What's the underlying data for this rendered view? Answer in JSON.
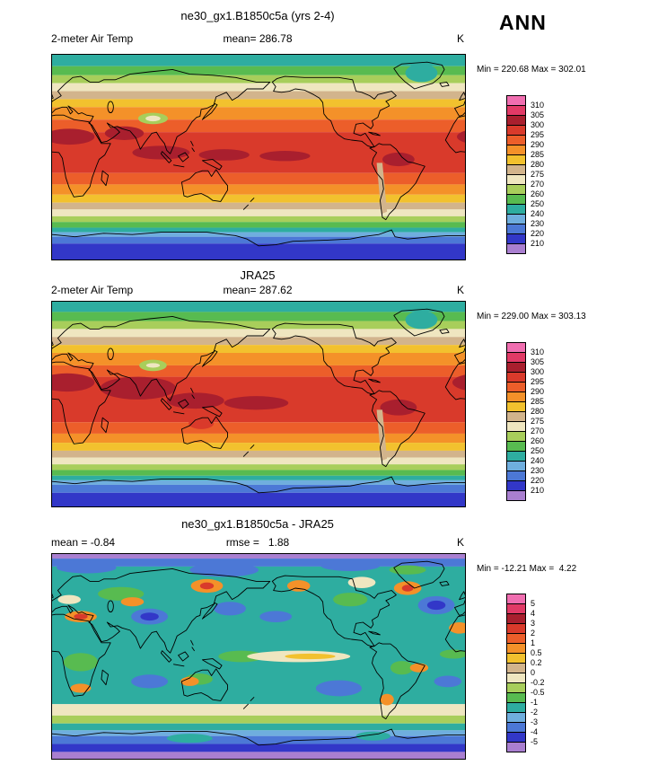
{
  "page": {
    "season": "ANN"
  },
  "palette": [
    "#F06EB0",
    "#E13A66",
    "#A91F2E",
    "#D93A2B",
    "#EC5E2A",
    "#F49129",
    "#F2C12E",
    "#D2B48C",
    "#EFE6C0",
    "#A8CE5B",
    "#58BB50",
    "#2EADA0",
    "#6FAEDE",
    "#4C78D6",
    "#3237C8",
    "#A97FD0"
  ],
  "chart_data": [
    {
      "type": "heatmap",
      "title": "ne30_gx1.B1850c5a (yrs 2-4)",
      "header_left": "2-meter Air Temp",
      "header_mid": "mean= 286.78",
      "units": "K",
      "minmax_label": "Min = 220.68 Max = 302.01",
      "stats": {
        "mean": 286.78,
        "min": 220.68,
        "max": 302.01
      },
      "levels": [
        210,
        220,
        230,
        240,
        250,
        260,
        270,
        275,
        280,
        285,
        290,
        295,
        300,
        305,
        310
      ],
      "colorbar_ticks": [
        "310",
        "305",
        "300",
        "295",
        "290",
        "285",
        "280",
        "275",
        "270",
        "260",
        "250",
        "240",
        "230",
        "220",
        "210"
      ],
      "zonal_bands": [
        {
          "from": 90,
          "to": 80,
          "color": "#2EADA0"
        },
        {
          "from": 80,
          "to": 72,
          "color": "#58BB50"
        },
        {
          "from": 72,
          "to": 65,
          "color": "#A8CE5B"
        },
        {
          "from": 65,
          "to": 58,
          "color": "#EFE6C0"
        },
        {
          "from": 58,
          "to": 51,
          "color": "#D2B48C"
        },
        {
          "from": 51,
          "to": 44,
          "color": "#F2C12E"
        },
        {
          "from": 44,
          "to": 33,
          "color": "#F49129"
        },
        {
          "from": 33,
          "to": 22,
          "color": "#EC5E2A"
        },
        {
          "from": 22,
          "to": -14,
          "color": "#D93A2B"
        },
        {
          "from": -14,
          "to": -24,
          "color": "#EC5E2A"
        },
        {
          "from": -24,
          "to": -33,
          "color": "#F49129"
        },
        {
          "from": -33,
          "to": -40,
          "color": "#F2C12E"
        },
        {
          "from": -40,
          "to": -46,
          "color": "#D2B48C"
        },
        {
          "from": -46,
          "to": -52,
          "color": "#EFE6C0"
        },
        {
          "from": -52,
          "to": -57,
          "color": "#A8CE5B"
        },
        {
          "from": -57,
          "to": -62,
          "color": "#58BB50"
        },
        {
          "from": -62,
          "to": -66,
          "color": "#2EADA0"
        },
        {
          "from": -66,
          "to": -70,
          "color": "#6FAEDE"
        },
        {
          "from": -70,
          "to": -76,
          "color": "#4C78D6"
        },
        {
          "from": -76,
          "to": -90,
          "color": "#3237C8"
        }
      ]
    },
    {
      "type": "heatmap",
      "title": "JRA25",
      "header_left": "2-meter Air Temp",
      "header_mid": "mean= 287.62",
      "units": "K",
      "minmax_label": "Min = 229.00 Max = 303.13",
      "stats": {
        "mean": 287.62,
        "min": 229.0,
        "max": 303.13
      },
      "levels": [
        210,
        220,
        230,
        240,
        250,
        260,
        270,
        275,
        280,
        285,
        290,
        295,
        300,
        305,
        310
      ],
      "colorbar_ticks": [
        "310",
        "305",
        "300",
        "295",
        "290",
        "285",
        "280",
        "275",
        "270",
        "260",
        "250",
        "240",
        "230",
        "220",
        "210"
      ],
      "zonal_bands": [
        {
          "from": 90,
          "to": 81,
          "color": "#2EADA0"
        },
        {
          "from": 81,
          "to": 73,
          "color": "#58BB50"
        },
        {
          "from": 73,
          "to": 66,
          "color": "#A8CE5B"
        },
        {
          "from": 66,
          "to": 59,
          "color": "#EFE6C0"
        },
        {
          "from": 59,
          "to": 52,
          "color": "#D2B48C"
        },
        {
          "from": 52,
          "to": 45,
          "color": "#F2C12E"
        },
        {
          "from": 45,
          "to": 34,
          "color": "#F49129"
        },
        {
          "from": 34,
          "to": 24,
          "color": "#EC5E2A"
        },
        {
          "from": 24,
          "to": -16,
          "color": "#D93A2B"
        },
        {
          "from": -16,
          "to": -26,
          "color": "#EC5E2A"
        },
        {
          "from": -26,
          "to": -34,
          "color": "#F49129"
        },
        {
          "from": -34,
          "to": -41,
          "color": "#F2C12E"
        },
        {
          "from": -41,
          "to": -47,
          "color": "#D2B48C"
        },
        {
          "from": -47,
          "to": -53,
          "color": "#EFE6C0"
        },
        {
          "from": -53,
          "to": -58,
          "color": "#A8CE5B"
        },
        {
          "from": -58,
          "to": -63,
          "color": "#58BB50"
        },
        {
          "from": -63,
          "to": -67,
          "color": "#2EADA0"
        },
        {
          "from": -67,
          "to": -71,
          "color": "#6FAEDE"
        },
        {
          "from": -71,
          "to": -78,
          "color": "#4C78D6"
        },
        {
          "from": -78,
          "to": -90,
          "color": "#3237C8"
        }
      ]
    },
    {
      "type": "heatmap",
      "title": "ne30_gx1.B1850c5a - JRA25",
      "header_left": "mean = -0.84",
      "header_mid": "rmse =   1.88",
      "units": "K",
      "minmax_label": "Min = -12.21 Max =  4.22",
      "stats": {
        "mean": -0.84,
        "rmse": 1.88,
        "min": -12.21,
        "max": 4.22
      },
      "levels": [
        -5,
        -4,
        -3,
        -2,
        -1,
        -0.5,
        -0.2,
        0,
        0.2,
        0.5,
        1,
        2,
        3,
        4,
        5
      ],
      "colorbar_ticks": [
        "5",
        "4",
        "3",
        "2",
        "1",
        "0.5",
        "0.2",
        "0",
        "-0.2",
        "-0.5",
        "-1",
        "-2",
        "-3",
        "-4",
        "-5"
      ],
      "zonal_bands": [
        {
          "from": 90,
          "to": 86,
          "color": "#A97FD0"
        },
        {
          "from": 86,
          "to": 79,
          "color": "#4C78D6"
        },
        {
          "from": 79,
          "to": -42,
          "color": "#2EADA0"
        },
        {
          "from": -42,
          "to": -52,
          "color": "#EFE6C0"
        },
        {
          "from": -52,
          "to": -59,
          "color": "#A8CE5B"
        },
        {
          "from": -59,
          "to": -65,
          "color": "#2EADA0"
        },
        {
          "from": -65,
          "to": -70,
          "color": "#6FAEDE"
        },
        {
          "from": -70,
          "to": -77,
          "color": "#4C78D6"
        },
        {
          "from": -77,
          "to": -84,
          "color": "#3237C8"
        },
        {
          "from": -84,
          "to": -90,
          "color": "#A97FD0"
        }
      ]
    }
  ]
}
